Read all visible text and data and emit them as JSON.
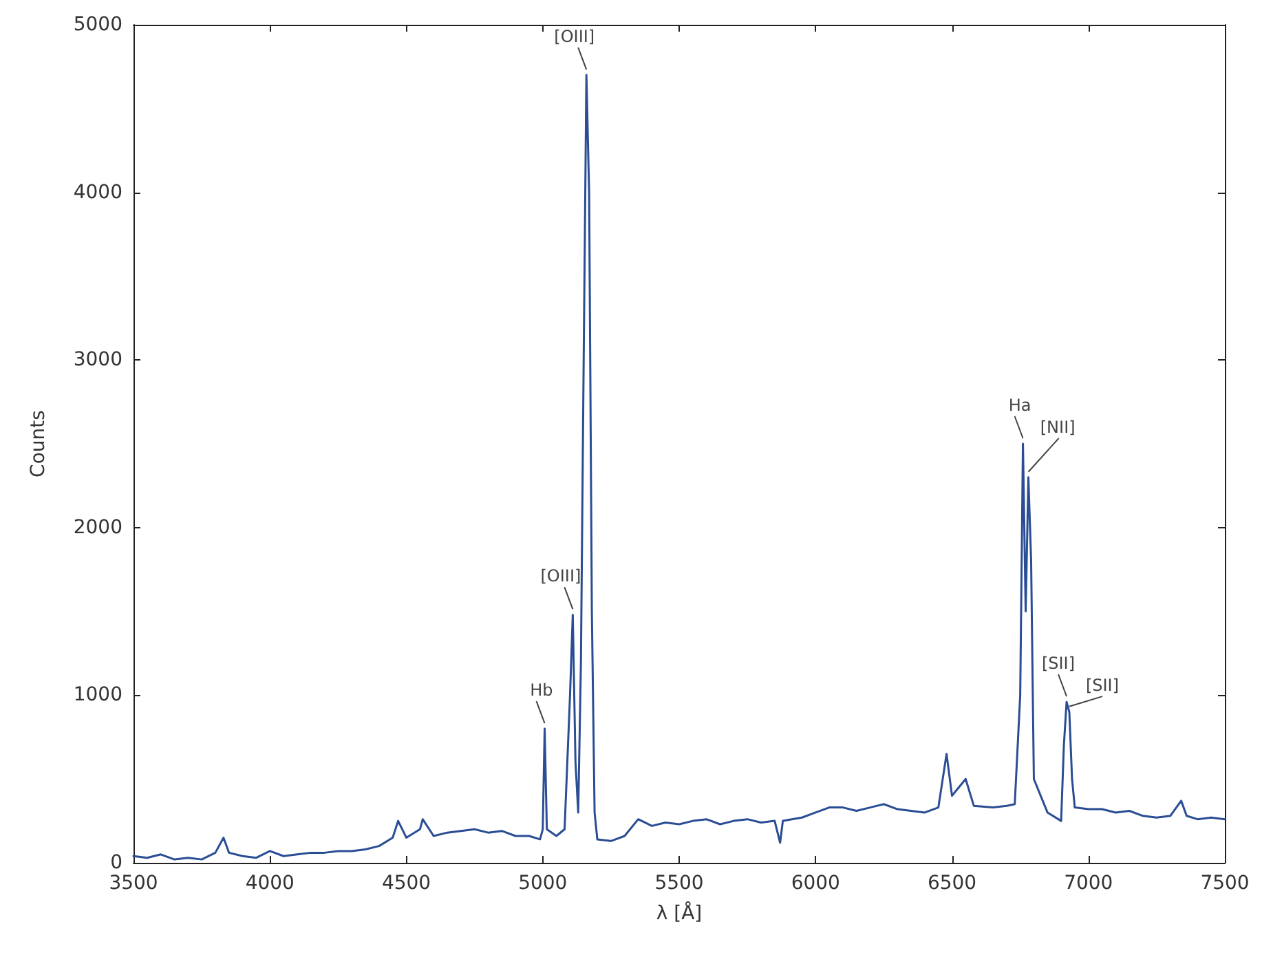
{
  "chart_data": {
    "type": "line",
    "xlabel": "λ [Å]",
    "ylabel": "Counts",
    "xlim": [
      3500,
      7500
    ],
    "xticks": [
      3500,
      4000,
      4500,
      5000,
      5500,
      6000,
      6500,
      7000,
      7500
    ],
    "ylim": [
      0,
      5000
    ],
    "yticks": [
      0,
      1000,
      2000,
      3000,
      4000,
      5000
    ],
    "grid": false,
    "marker": "none",
    "line_style": "solid",
    "series": [
      {
        "color": "#2a4d94",
        "x": [
          3500,
          3550,
          3600,
          3650,
          3700,
          3750,
          3800,
          3830,
          3850,
          3900,
          3950,
          4000,
          4050,
          4100,
          4150,
          4200,
          4250,
          4300,
          4350,
          4400,
          4450,
          4470,
          4500,
          4550,
          4560,
          4600,
          4650,
          4700,
          4750,
          4800,
          4850,
          4900,
          4950,
          4990,
          5000,
          5007,
          5015,
          5050,
          5080,
          5100,
          5110,
          5120,
          5130,
          5140,
          5150,
          5160,
          5170,
          5180,
          5190,
          5200,
          5250,
          5300,
          5350,
          5400,
          5450,
          5500,
          5550,
          5600,
          5650,
          5700,
          5750,
          5800,
          5850,
          5870,
          5880,
          5950,
          6000,
          6050,
          6100,
          6150,
          6200,
          6250,
          6300,
          6350,
          6400,
          6450,
          6480,
          6500,
          6550,
          6580,
          6650,
          6700,
          6730,
          6750,
          6760,
          6770,
          6780,
          6790,
          6800,
          6850,
          6900,
          6910,
          6920,
          6930,
          6940,
          6950,
          7000,
          7050,
          7100,
          7150,
          7200,
          7250,
          7300,
          7340,
          7360,
          7400,
          7450,
          7500
        ],
        "values": [
          40,
          30,
          50,
          20,
          30,
          20,
          60,
          150,
          60,
          40,
          30,
          70,
          40,
          50,
          60,
          60,
          70,
          70,
          80,
          100,
          150,
          250,
          150,
          200,
          260,
          160,
          180,
          190,
          200,
          180,
          190,
          160,
          160,
          140,
          200,
          800,
          200,
          160,
          200,
          1000,
          1480,
          600,
          300,
          1200,
          3000,
          4700,
          4000,
          1500,
          300,
          140,
          130,
          160,
          260,
          220,
          240,
          230,
          250,
          260,
          230,
          250,
          260,
          240,
          250,
          120,
          250,
          270,
          300,
          330,
          330,
          310,
          330,
          350,
          320,
          310,
          300,
          330,
          650,
          400,
          500,
          340,
          330,
          340,
          350,
          1000,
          2500,
          1500,
          2300,
          1800,
          500,
          300,
          250,
          700,
          960,
          900,
          500,
          330,
          320,
          320,
          300,
          310,
          280,
          270,
          280,
          370,
          280,
          260,
          270,
          260
        ]
      }
    ],
    "annotations": [
      {
        "text": "Hb",
        "x": 5007,
        "y": 800
      },
      {
        "text": "[OIII]",
        "x": 5110,
        "y": 1480
      },
      {
        "text": "[OIII]",
        "x": 5160,
        "y": 4700
      },
      {
        "text": "Ha",
        "x": 6760,
        "y": 2500
      },
      {
        "text": "[NII]",
        "x": 6780,
        "y": 2300
      },
      {
        "text": "[SII]",
        "x": 6920,
        "y": 960
      },
      {
        "text": "[SII]",
        "x": 6930,
        "y": 900
      }
    ]
  }
}
